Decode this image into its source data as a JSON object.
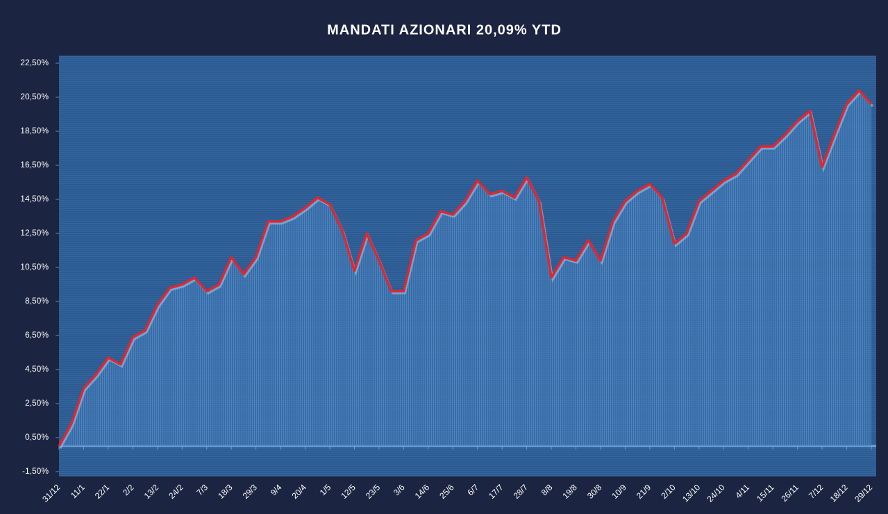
{
  "chart_data": {
    "type": "line",
    "title": "MANDATI AZIONARI 20,09% YTD",
    "categories": [
      "31/12",
      null,
      "11/1",
      null,
      "22/1",
      null,
      "2/2",
      null,
      "13/2",
      null,
      "24/2",
      null,
      "7/3",
      null,
      "18/3",
      null,
      "29/3",
      null,
      "9/4",
      null,
      "20/4",
      null,
      "1/5",
      null,
      "12/5",
      null,
      "23/5",
      null,
      "3/6",
      null,
      "14/6",
      null,
      "25/6",
      null,
      "6/7",
      null,
      "17/7",
      null,
      "28/7",
      null,
      "8/8",
      null,
      "19/8",
      null,
      "30/8",
      null,
      "10/9",
      null,
      "21/9",
      null,
      "2/10",
      null,
      "13/10",
      null,
      "24/10",
      null,
      "4/11",
      null,
      "15/11",
      null,
      "26/11",
      null,
      "7/12",
      null,
      "18/12",
      null,
      "29/12"
    ],
    "series": [
      {
        "name": "Mandati azionari",
        "color": "#e0262f",
        "values": [
          0.0,
          1.3,
          3.4,
          4.2,
          5.2,
          4.8,
          6.4,
          6.8,
          8.3,
          9.3,
          9.5,
          9.9,
          9.1,
          9.5,
          11.1,
          10.1,
          11.1,
          13.2,
          13.2,
          13.5,
          14.0,
          14.6,
          14.2,
          12.7,
          10.3,
          12.5,
          10.9,
          9.1,
          9.1,
          12.1,
          12.5,
          13.8,
          13.6,
          14.4,
          15.6,
          14.8,
          15.0,
          14.6,
          15.8,
          14.4,
          9.9,
          11.1,
          10.9,
          12.1,
          10.9,
          13.2,
          14.4,
          15.0,
          15.4,
          14.6,
          11.9,
          12.5,
          14.4,
          15.0,
          15.6,
          16.0,
          16.8,
          17.6,
          17.6,
          18.3,
          19.1,
          19.7,
          16.4,
          18.3,
          20.1,
          20.9,
          20.09
        ]
      }
    ],
    "ylim": [
      -1.5,
      22.5
    ],
    "yticks": [
      {
        "value": -1.5,
        "label": "-1,50%"
      },
      {
        "value": 0.5,
        "label": "0,50%"
      },
      {
        "value": 2.5,
        "label": "2,50%"
      },
      {
        "value": 4.5,
        "label": "4,50%"
      },
      {
        "value": 6.5,
        "label": "6,50%"
      },
      {
        "value": 8.5,
        "label": "8,50%"
      },
      {
        "value": 10.5,
        "label": "10,50%"
      },
      {
        "value": 12.5,
        "label": "12,50%"
      },
      {
        "value": 14.5,
        "label": "14,50%"
      },
      {
        "value": 16.5,
        "label": "16,50%"
      },
      {
        "value": 18.5,
        "label": "18,50%"
      },
      {
        "value": 20.5,
        "label": "20,50%"
      },
      {
        "value": 22.5,
        "label": "22,50%"
      }
    ]
  }
}
